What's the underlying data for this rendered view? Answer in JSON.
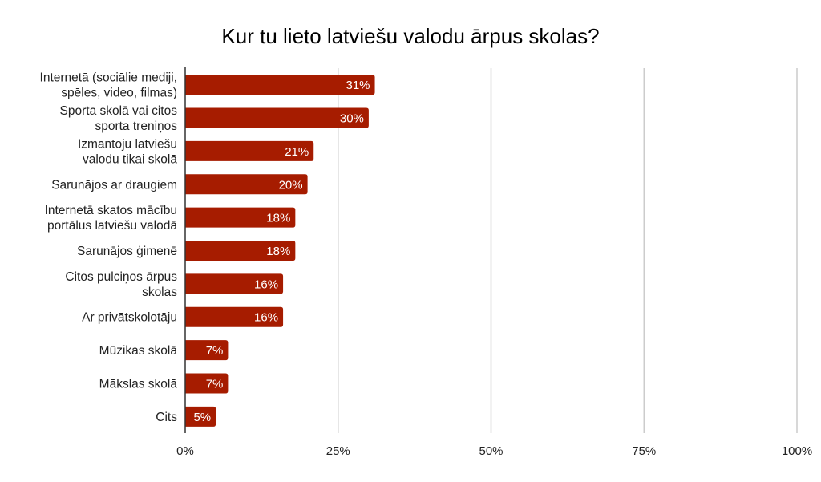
{
  "chart_data": {
    "type": "bar",
    "orientation": "horizontal",
    "title": "Kur tu lieto latviešu valodu ārpus skolas?",
    "xlabel": "",
    "ylabel": "",
    "xlim": [
      0,
      100
    ],
    "x_ticks": [
      "0%",
      "25%",
      "50%",
      "75%",
      "100%"
    ],
    "grid": true,
    "bar_color": "#a61c00",
    "categories": [
      [
        "Internetā (sociālie mediji,",
        "spēles, video, filmas)"
      ],
      [
        "Sporta skolā vai citos",
        "sporta treniņos"
      ],
      [
        "Izmantoju latviešu",
        "valodu tikai skolā"
      ],
      [
        "Sarunājos ar draugiem"
      ],
      [
        "Internetā skatos mācību",
        "portālus latviešu valodā"
      ],
      [
        "Sarunājos ģimenē"
      ],
      [
        "Citos pulciņos ārpus",
        "skolas"
      ],
      [
        "Ar privātskolotāju"
      ],
      [
        "Mūzikas skolā"
      ],
      [
        "Mākslas skolā"
      ],
      [
        "Cits"
      ]
    ],
    "values": [
      31,
      30,
      21,
      20,
      18,
      18,
      16,
      16,
      7,
      7,
      5
    ],
    "data_labels": [
      "31%",
      "30%",
      "21%",
      "20%",
      "18%",
      "18%",
      "16%",
      "16%",
      "7%",
      "7%",
      "5%"
    ]
  }
}
